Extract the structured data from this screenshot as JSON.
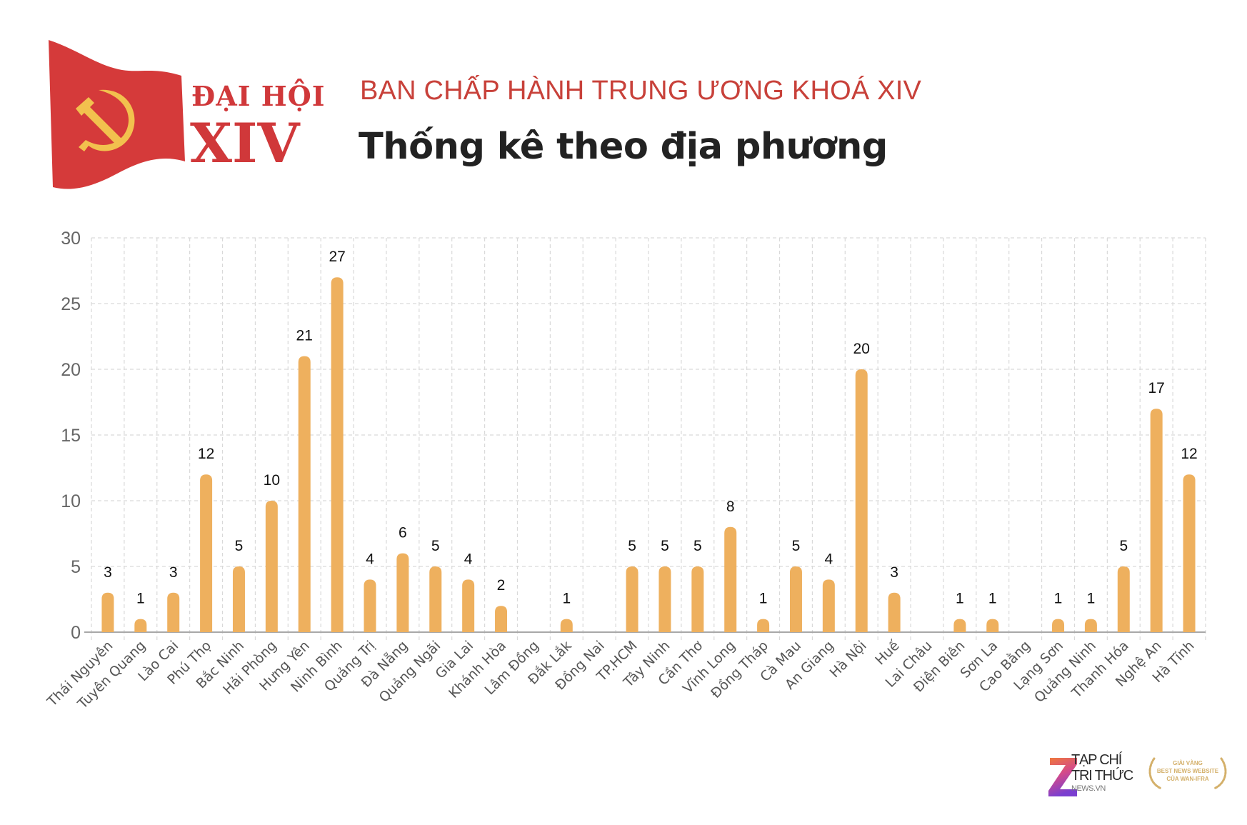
{
  "header": {
    "logo_line1": "ĐẠI HỘI",
    "logo_line2": "XIV",
    "subtitle": "BAN CHẤP HÀNH TRUNG ƯƠNG KHOÁ XIV",
    "title": "Thống kê theo địa phương"
  },
  "colors": {
    "flag_red": "#d53a3a",
    "emblem_yellow": "#f2c14e",
    "brand_red": "#d0383a",
    "subtitle_red": "#c8413a",
    "bar": "#eeb05e",
    "title_text": "#222222",
    "axis_text": "#666666",
    "grid": "#d9d9d9",
    "award_gold": "#d4b06a"
  },
  "footer": {
    "publisher_line1": "TẠP CHÍ",
    "publisher_line2": "TRI THỨC",
    "publisher_line3": "NEWS.VN",
    "award_line1": "GIẢI VÀNG",
    "award_line2": "BEST NEWS WEBSITE",
    "award_line3": "CỦA WAN-IFRA"
  },
  "chart_data": {
    "type": "bar",
    "title": "Thống kê theo địa phương",
    "subtitle": "BAN CHẤP HÀNH TRUNG ƯƠNG KHOÁ XIV",
    "xlabel": "",
    "ylabel": "",
    "ylim": [
      0,
      30
    ],
    "yticks": [
      0,
      5,
      10,
      15,
      20,
      25,
      30
    ],
    "grid": true,
    "legend": null,
    "data_labels": true,
    "categories": [
      "Thái Nguyên",
      "Tuyên Quang",
      "Lào Cai",
      "Phú Thọ",
      "Bắc Ninh",
      "Hải Phòng",
      "Hưng Yên",
      "Ninh Bình",
      "Quảng Trị",
      "Đà Nẵng",
      "Quảng Ngãi",
      "Gia Lai",
      "Khánh Hòa",
      "Lâm Đồng",
      "Đắk Lắk",
      "Đồng Nai",
      "TP.HCM",
      "Tây Ninh",
      "Cần Thơ",
      "Vĩnh Long",
      "Đồng Tháp",
      "Cà Mau",
      "An Giang",
      "Hà Nội",
      "Huế",
      "Lai Châu",
      "Điện Biên",
      "Sơn La",
      "Cao Bằng",
      "Lạng Sơn",
      "Quảng Ninh",
      "Thanh Hóa",
      "Nghệ An",
      "Hà Tĩnh"
    ],
    "values": [
      3,
      1,
      3,
      12,
      5,
      10,
      21,
      27,
      4,
      6,
      5,
      4,
      2,
      0,
      1,
      0,
      5,
      5,
      5,
      8,
      1,
      5,
      4,
      20,
      3,
      0,
      1,
      1,
      0,
      1,
      1,
      5,
      17,
      12
    ]
  }
}
